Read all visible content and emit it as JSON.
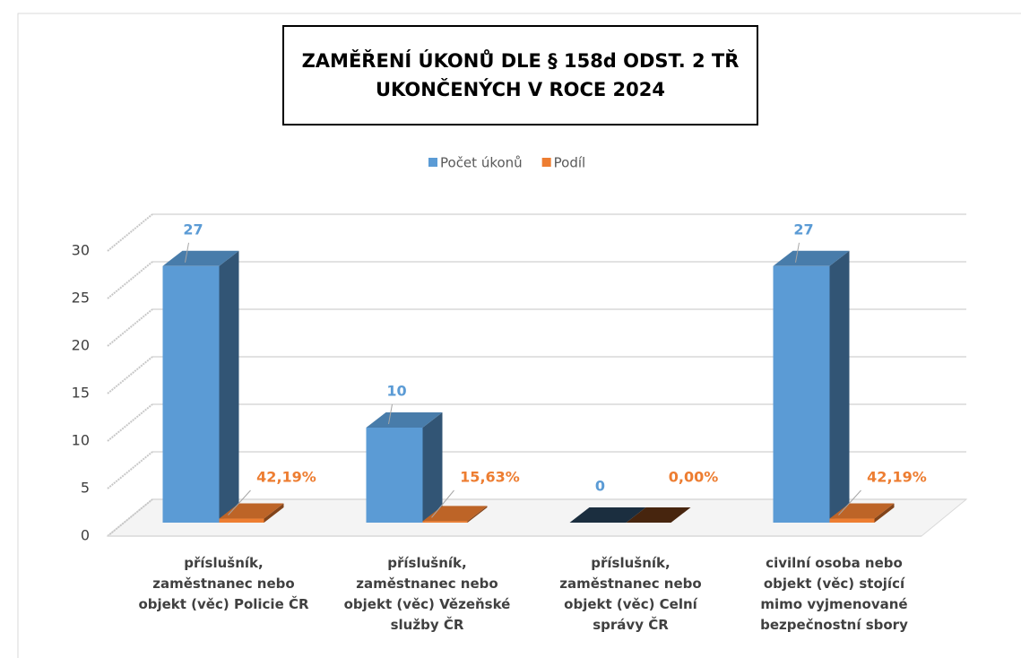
{
  "chart_data": {
    "type": "bar3d",
    "title": "ZAMĚŘENÍ ÚKONŮ DLE § 158d ODST. 2 TŘ UKONČENÝCH V ROCE 2024",
    "categories": [
      "příslušník, zaměstnanec nebo objekt (věc) Policie ČR",
      "příslušník, zaměstnanec nebo objekt (věc) Vězeňské služby ČR",
      "příslušník, zaměstnanec nebo objekt (věc) Celní správy ČR",
      "civilní osoba nebo objekt (věc) stojící mimo vyjmenované bezpečnostní sbory"
    ],
    "series": [
      {
        "name": "Počet úkonů",
        "color": "#5b9bd5",
        "values": [
          27,
          10,
          0,
          27
        ]
      },
      {
        "name": "Podíl",
        "color": "#ed7d31",
        "values": [
          0.4219,
          0.1563,
          0,
          0.4219
        ],
        "value_labels": [
          "42,19%",
          "15,63%",
          "0,00%",
          "42,19%"
        ]
      }
    ],
    "ylim": [
      0,
      30
    ],
    "yticks": [
      0,
      5,
      10,
      15,
      20,
      25,
      30
    ],
    "grid": true,
    "legend": "top"
  }
}
